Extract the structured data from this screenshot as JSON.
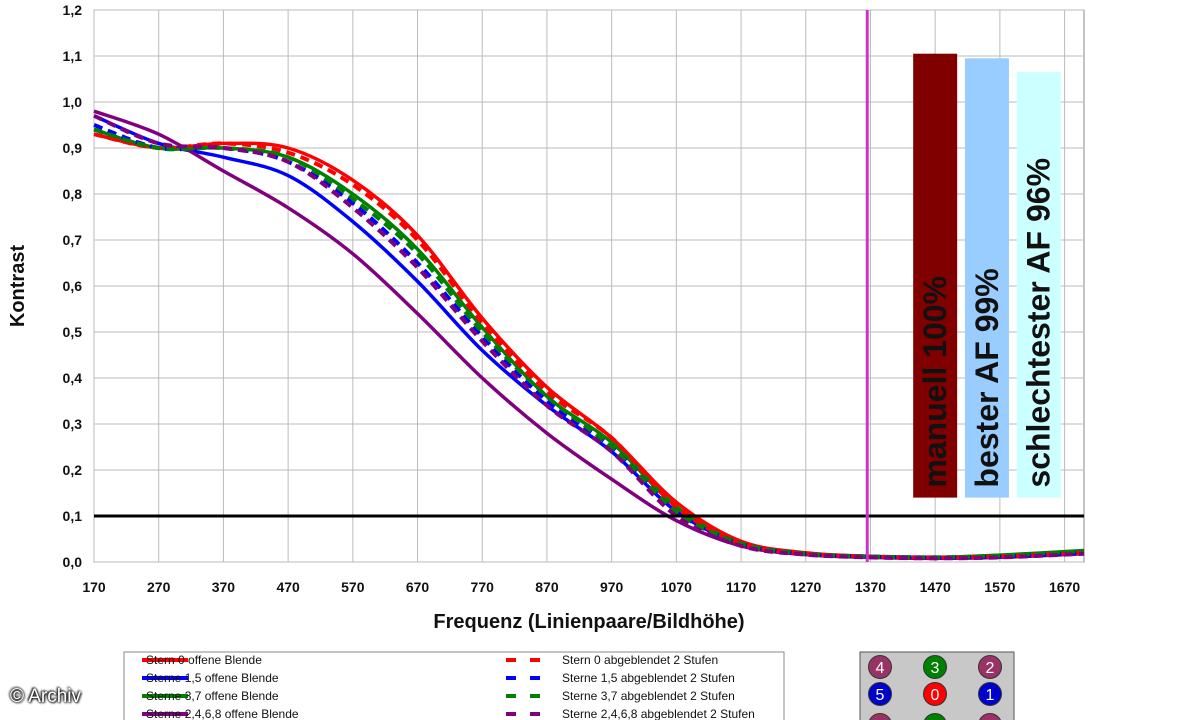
{
  "credit": "© Archiv",
  "chart_data": {
    "type": "line",
    "xlabel": "Frequenz (Linienpaare/Bildhöhe)",
    "ylabel": "Kontrast",
    "xlim": [
      170,
      1700
    ],
    "ylim": [
      0,
      1.2
    ],
    "x_ticks": [
      170,
      270,
      370,
      470,
      570,
      670,
      770,
      870,
      970,
      1070,
      1170,
      1270,
      1370,
      1470,
      1570,
      1670
    ],
    "y_ticks": [
      0,
      0.1,
      0.2,
      0.3,
      0.4,
      0.5,
      0.6,
      0.7,
      0.8,
      0.9,
      1.0,
      1.1,
      1.2
    ],
    "y_tick_labels": [
      "0,0",
      "0,1",
      "0,2",
      "0,3",
      "0,4",
      "0,5",
      "0,6",
      "0,7",
      "0,8",
      "0,9",
      "1,0",
      "1,1",
      "1,2"
    ],
    "grid": true,
    "reference_lines": [
      {
        "orientation": "horizontal",
        "value": 0.1,
        "color": "#000000"
      },
      {
        "orientation": "vertical",
        "value": 1365,
        "color": "#cc33cc"
      }
    ],
    "bars": [
      {
        "label": "manuell 100%",
        "x": 1470,
        "value": 1.105,
        "bottom": 0.14,
        "color": "#800000",
        "text_color": "#ffffff"
      },
      {
        "label": "bester AF 99%",
        "x": 1550,
        "value": 1.095,
        "bottom": 0.14,
        "color": "#99ccff",
        "text_color": "#111111"
      },
      {
        "label": "schlechtester AF 96%",
        "x": 1630,
        "value": 1.065,
        "bottom": 0.14,
        "color": "#ccffff",
        "text_color": "#111111"
      }
    ],
    "x": [
      170,
      270,
      370,
      470,
      570,
      670,
      770,
      870,
      970,
      1070,
      1170,
      1270,
      1370,
      1470,
      1570,
      1700
    ],
    "series": [
      {
        "name": "Stern 0 offene Blende",
        "color": "#ff0000",
        "dash": false,
        "values": [
          0.93,
          0.9,
          0.91,
          0.9,
          0.83,
          0.71,
          0.53,
          0.38,
          0.27,
          0.13,
          0.045,
          0.02,
          0.012,
          0.01,
          0.012,
          0.02
        ]
      },
      {
        "name": "Sterne 1,5 offene Blende",
        "color": "#0000ff",
        "dash": false,
        "values": [
          0.97,
          0.91,
          0.88,
          0.84,
          0.74,
          0.61,
          0.46,
          0.34,
          0.24,
          0.11,
          0.04,
          0.018,
          0.012,
          0.01,
          0.012,
          0.02
        ]
      },
      {
        "name": "Sterne 3,7 offene Blende",
        "color": "#008000",
        "dash": false,
        "values": [
          0.94,
          0.9,
          0.9,
          0.88,
          0.8,
          0.68,
          0.51,
          0.36,
          0.26,
          0.12,
          0.04,
          0.018,
          0.012,
          0.01,
          0.015,
          0.025
        ]
      },
      {
        "name": "Sterne 2,4,6,8 offene Blende",
        "color": "#800080",
        "dash": false,
        "values": [
          0.98,
          0.93,
          0.85,
          0.77,
          0.67,
          0.54,
          0.4,
          0.28,
          0.18,
          0.09,
          0.035,
          0.016,
          0.01,
          0.008,
          0.01,
          0.018
        ]
      },
      {
        "name": "Stern 0 abgeblendet 2 Stufen",
        "color": "#ff0000",
        "dash": true,
        "values": [
          0.93,
          0.9,
          0.91,
          0.89,
          0.82,
          0.7,
          0.52,
          0.37,
          0.27,
          0.12,
          0.04,
          0.018,
          0.012,
          0.01,
          0.012,
          0.02
        ]
      },
      {
        "name": "Sterne 1,5 abgeblendet 2 Stufen",
        "color": "#0000ff",
        "dash": true,
        "values": [
          0.95,
          0.9,
          0.9,
          0.87,
          0.78,
          0.65,
          0.49,
          0.35,
          0.25,
          0.11,
          0.04,
          0.018,
          0.012,
          0.01,
          0.012,
          0.02
        ]
      },
      {
        "name": "Sterne 3,7 abgeblendet 2 Stufen",
        "color": "#008000",
        "dash": true,
        "values": [
          0.94,
          0.9,
          0.9,
          0.88,
          0.79,
          0.67,
          0.5,
          0.36,
          0.25,
          0.11,
          0.04,
          0.018,
          0.012,
          0.01,
          0.014,
          0.024
        ]
      },
      {
        "name": "Sterne 2,4,6,8 abgeblendet 2 Stufen",
        "color": "#800080",
        "dash": true,
        "values": [
          0.97,
          0.91,
          0.9,
          0.87,
          0.77,
          0.64,
          0.48,
          0.34,
          0.24,
          0.1,
          0.035,
          0.016,
          0.01,
          0.008,
          0.01,
          0.018
        ]
      }
    ],
    "legend_placement": "bottom",
    "key_diagram": {
      "items": [
        {
          "label": "4",
          "color": "#993366"
        },
        {
          "label": "3",
          "color": "#008000"
        },
        {
          "label": "2",
          "color": "#993366"
        },
        {
          "label": "5",
          "color": "#0000cc"
        },
        {
          "label": "0",
          "color": "#ff0000"
        },
        {
          "label": "1",
          "color": "#0000cc"
        }
      ]
    }
  }
}
